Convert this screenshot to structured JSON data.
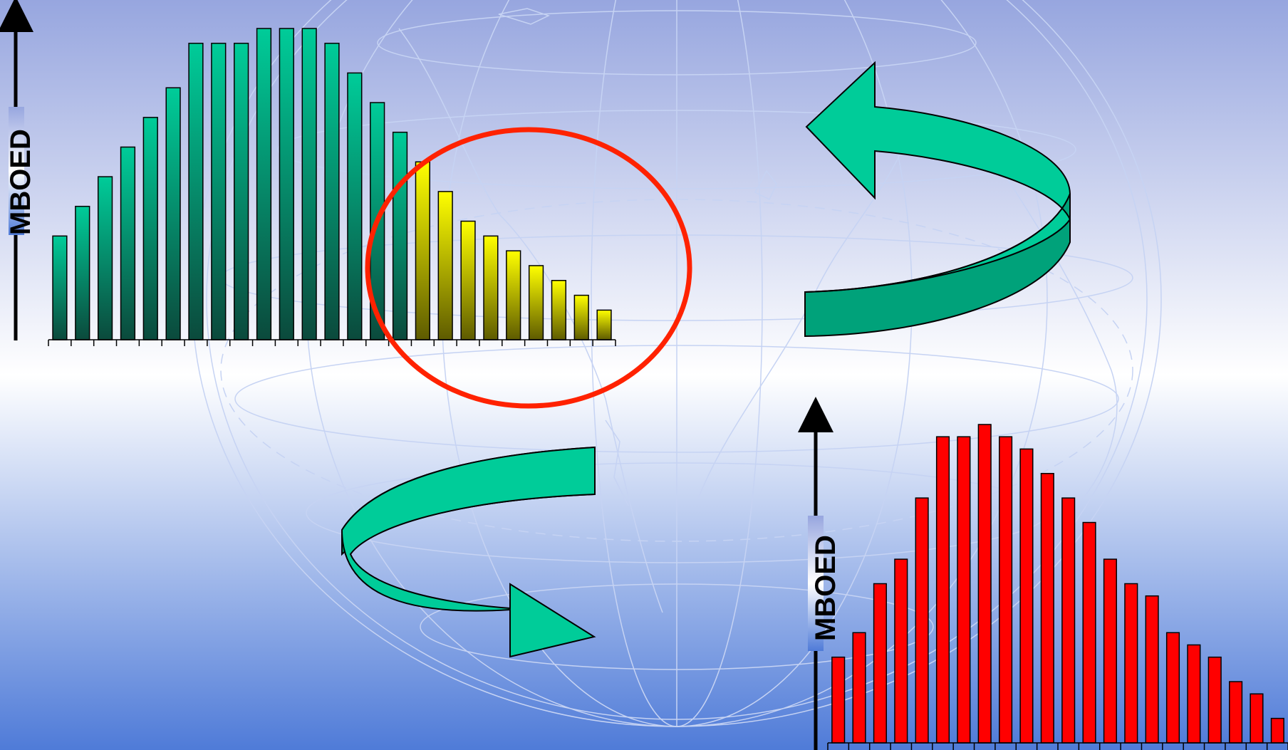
{
  "colors": {
    "bg_top": "#97A6DF",
    "bg_mid": "#FFFFFF",
    "bg_bottom": "#4F7BD8",
    "globe_line": "#C6D3F3",
    "teal_light": "#00CC99",
    "teal_dark": "#0B4A3C",
    "teal_ribbon": "#00A27A",
    "yellow_light": "#FFFF00",
    "yellow_dark": "#5E5B00",
    "red": "#FF0000",
    "ellipse": "#FF2200"
  },
  "chart_data": [
    {
      "type": "bar",
      "ylabel": "MBOED",
      "series": [
        {
          "values": [
            3.5,
            4.5,
            5.5,
            6.5,
            7.5,
            8.5,
            10,
            10,
            10,
            10.5,
            10.5,
            10.5,
            10,
            9,
            8,
            7,
            6,
            5,
            4,
            3.5,
            3,
            2.5,
            2,
            1.5,
            1
          ]
        }
      ],
      "highlight": {
        "from_index": 16,
        "to_index": 24,
        "color": "yellow"
      }
    },
    {
      "type": "bar",
      "ylabel": "MBOED",
      "series": [
        {
          "values": [
            3.5,
            4.5,
            6.5,
            7.5,
            10,
            12.5,
            12.5,
            13,
            12.5,
            12,
            11,
            10,
            9,
            7.5,
            6.5,
            6,
            4.5,
            4,
            3.5,
            2.5,
            2,
            1
          ]
        }
      ]
    }
  ]
}
